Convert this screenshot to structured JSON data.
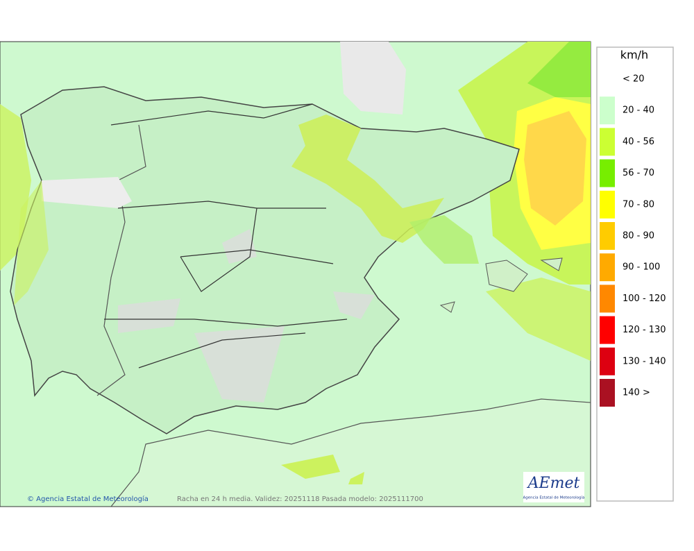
{
  "legend": {
    "title": "km/h",
    "items": [
      {
        "label": "< 20",
        "color": "#ffffff"
      },
      {
        "label": "20 - 40",
        "color": "#ccffcc"
      },
      {
        "label": "40 - 56",
        "color": "#ccff33"
      },
      {
        "label": "56 - 70",
        "color": "#77ee00"
      },
      {
        "label": "70 - 80",
        "color": "#ffff00"
      },
      {
        "label": "80 - 90",
        "color": "#ffcc00"
      },
      {
        "label": "90 - 100",
        "color": "#ffaa00"
      },
      {
        "label": "100 - 120",
        "color": "#ff8800"
      },
      {
        "label": "120 - 130",
        "color": "#ff0000"
      },
      {
        "label": "130 - 140",
        "color": "#dd0011"
      },
      {
        "label": "140 >",
        "color": "#aa1122"
      }
    ]
  },
  "map": {
    "credit": "© Agencia Estatal de Meteorología",
    "caption": "Racha en 24 h media. Validez: 20251118 Pasada modelo: 2025111700"
  },
  "logo": {
    "text": "AEmet",
    "subtitle": "Agencia Estatal de Meteorología"
  }
}
